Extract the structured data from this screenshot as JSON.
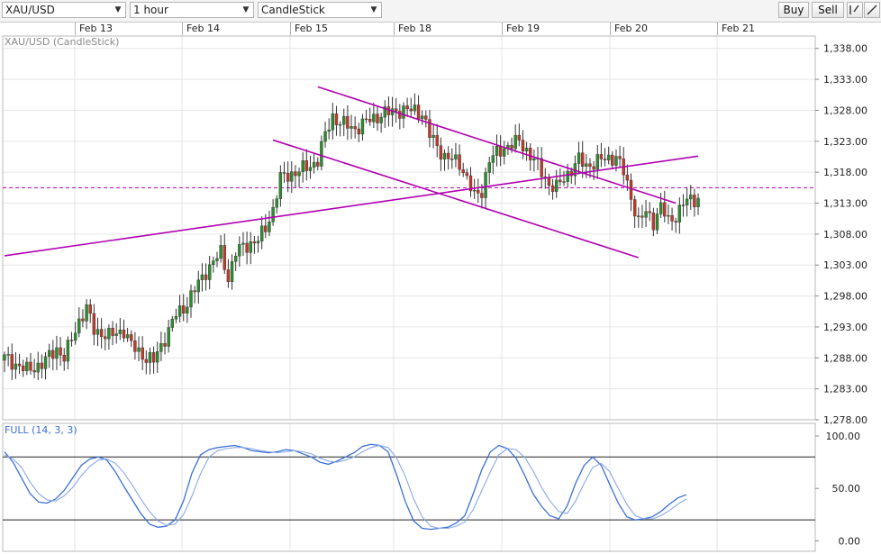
{
  "toolbar": {
    "symbol": "XAU/USD",
    "timeframe": "1 hour",
    "chart_style": "CandleStick",
    "buy_label": "Buy",
    "sell_label": "Sell",
    "icons": [
      "line-draw-icon",
      "trendline-draw-icon"
    ]
  },
  "date_axis": {
    "labels": [
      "Feb 13",
      "Feb 14",
      "Feb 15",
      "Feb 18",
      "Feb 19",
      "Feb 20",
      "Feb 21"
    ]
  },
  "colors": {
    "bull": "#2e8b2e",
    "bear": "#c0392b",
    "trendline": "#b000b0",
    "stoch_k": "#3a6fd8",
    "stoch_d": "#8aa8e8",
    "grid": "#e6e6e6"
  },
  "chart_data": [
    {
      "type": "candlestick",
      "title": "XAU/USD (CandleStick)",
      "ylim": [
        1278,
        1340
      ],
      "y_ticks": [
        "1,338.00",
        "1,333.00",
        "1,328.00",
        "1,323.00",
        "1,318.00",
        "1,313.00",
        "1,308.00",
        "1,303.00",
        "1,298.00",
        "1,293.00",
        "1,288.00",
        "1,283.00",
        "1,278.00"
      ],
      "y_tick_values": [
        1338,
        1333,
        1328,
        1323,
        1318,
        1313,
        1308,
        1303,
        1298,
        1293,
        1288,
        1283,
        1278
      ],
      "grid": true,
      "reference_line": {
        "value": 1315.5,
        "style": "dashed"
      },
      "path": [
        [
          0,
          1288
        ],
        [
          6,
          1286
        ],
        [
          10,
          1287
        ],
        [
          14,
          1289.5
        ],
        [
          16,
          1288
        ],
        [
          20,
          1294
        ],
        [
          22,
          1296
        ],
        [
          24,
          1292.5
        ],
        [
          26,
          1292
        ],
        [
          28,
          1291.5
        ],
        [
          32,
          1292.5
        ],
        [
          34,
          1290
        ],
        [
          38,
          1288
        ],
        [
          40,
          1287.5
        ],
        [
          42,
          1290
        ],
        [
          46,
          1295
        ],
        [
          48,
          1296
        ],
        [
          50,
          1298
        ],
        [
          54,
          1302
        ],
        [
          58,
          1305
        ],
        [
          60,
          1301
        ],
        [
          62,
          1305
        ],
        [
          64,
          1306
        ],
        [
          68,
          1307
        ],
        [
          70,
          1309
        ],
        [
          72,
          1312
        ],
        [
          74,
          1317
        ],
        [
          78,
          1318
        ],
        [
          82,
          1319
        ],
        [
          84,
          1320
        ],
        [
          86,
          1324
        ],
        [
          88,
          1327
        ],
        [
          90,
          1326
        ],
        [
          94,
          1325
        ],
        [
          98,
          1326.5
        ],
        [
          102,
          1327.5
        ],
        [
          106,
          1328
        ],
        [
          110,
          1328
        ],
        [
          112,
          1327.5
        ],
        [
          114,
          1324
        ],
        [
          118,
          1320.5
        ],
        [
          122,
          1319.5
        ],
        [
          124,
          1317
        ],
        [
          126,
          1314
        ],
        [
          128,
          1315
        ],
        [
          130,
          1320
        ],
        [
          134,
          1322
        ],
        [
          138,
          1323
        ],
        [
          142,
          1320
        ],
        [
          146,
          1316
        ],
        [
          148,
          1315.5
        ],
        [
          150,
          1317
        ],
        [
          154,
          1320
        ],
        [
          156,
          1319
        ],
        [
          160,
          1320
        ],
        [
          164,
          1320.5
        ],
        [
          166,
          1318
        ],
        [
          168,
          1314
        ],
        [
          170,
          1310
        ],
        [
          172,
          1311.5
        ],
        [
          174,
          1310
        ],
        [
          176,
          1312.5
        ],
        [
          178,
          1310
        ],
        [
          180,
          1311
        ],
        [
          182,
          1313
        ],
        [
          184,
          1313.5
        ],
        [
          186,
          1313.8
        ]
      ],
      "trendlines": [
        {
          "name": "rising-support",
          "from": [
            0,
            1304.5
          ],
          "to": [
            186,
            1320.6
          ]
        },
        {
          "name": "channel-upper",
          "from": [
            84,
            1331.8
          ],
          "to": [
            180,
            1313.0
          ]
        },
        {
          "name": "channel-lower",
          "from": [
            72,
            1323.2
          ],
          "to": [
            170,
            1304.2
          ]
        }
      ]
    },
    {
      "type": "line",
      "title": "FULL (14, 3, 3)",
      "ylim": [
        0,
        100
      ],
      "y_ticks": [
        "100.00",
        "50.00",
        "0.00"
      ],
      "y_tick_values": [
        100,
        50,
        0
      ],
      "levels": [
        80,
        20
      ],
      "series": [
        {
          "values": [
            85,
            75,
            60,
            45,
            37,
            36,
            40,
            48,
            60,
            72,
            78,
            80,
            77,
            66,
            52,
            39,
            26,
            16,
            13,
            14,
            20,
            38,
            65,
            82,
            87,
            89,
            90,
            91,
            89,
            86,
            85,
            84,
            85,
            87,
            86,
            83,
            80,
            75,
            73,
            76,
            80,
            84,
            90,
            92,
            91,
            85,
            63,
            38,
            19,
            12,
            11,
            12,
            13,
            17,
            24,
            45,
            68,
            85,
            91,
            88,
            79,
            63,
            45,
            33,
            24,
            21,
            33,
            55,
            72,
            80,
            72,
            54,
            36,
            23,
            20,
            21,
            23,
            28,
            35,
            41,
            44
          ]
        },
        {
          "values": [
            82,
            78,
            70,
            56,
            45,
            39,
            38,
            43,
            51,
            62,
            71,
            77,
            78,
            74,
            65,
            53,
            40,
            28,
            19,
            15,
            16,
            25,
            43,
            64,
            80,
            86,
            88,
            89,
            89,
            88,
            86,
            85,
            84,
            85,
            86,
            85,
            83,
            79,
            76,
            75,
            77,
            80,
            85,
            89,
            91,
            89,
            79,
            62,
            40,
            23,
            14,
            12,
            12,
            14,
            18,
            30,
            48,
            66,
            82,
            88,
            87,
            80,
            67,
            51,
            38,
            28,
            26,
            38,
            55,
            70,
            74,
            66,
            50,
            35,
            24,
            21,
            21,
            24,
            29,
            35,
            40
          ]
        }
      ]
    }
  ]
}
